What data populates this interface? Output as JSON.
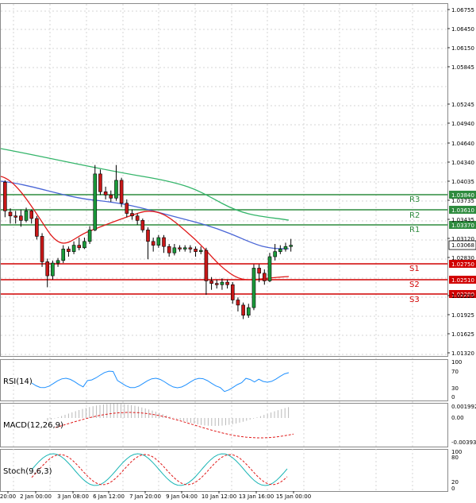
{
  "colors": {
    "level_green": "#2e8b3e",
    "level_red": "#d10000",
    "ma_red": "#e01818",
    "ma_blue": "#4a66d6",
    "ma_green": "#34b56a",
    "indicator": "#1e90ff",
    "macd_hist": "#b8b8b8",
    "signal": "#e01818",
    "candle_up": "#1a9a3a",
    "candle_down": "#c81818"
  },
  "main": {
    "y_labels": [
      "1.06755",
      "1.06450",
      "1.06150",
      "1.05845",
      "1.05245",
      "1.04940",
      "1.04640",
      "1.04340",
      "1.04035",
      "1.03735",
      "1.03435",
      "1.03120",
      "1.02830",
      "1.02225",
      "1.01925",
      "1.01625",
      "1.01320"
    ],
    "price_tag": "1.03068",
    "levels": [
      {
        "name": "R3",
        "value": "1.03840",
        "kind": "resistance"
      },
      {
        "name": "R2",
        "value": "1.03610",
        "kind": "resistance"
      },
      {
        "name": "R1",
        "value": "1.03370",
        "kind": "resistance"
      },
      {
        "name": "S1",
        "value": "1.02750",
        "kind": "support"
      },
      {
        "name": "S2",
        "value": "1.02510",
        "kind": "support"
      },
      {
        "name": "S3",
        "value": "1.02280",
        "kind": "support"
      }
    ]
  },
  "panels": {
    "rsi": {
      "title": "RSI(14)",
      "ticks": [
        "100",
        "70",
        "30",
        "0"
      ]
    },
    "macd": {
      "title": "MACD(12,26,9)",
      "ticks": [
        "0.001992",
        "0.00",
        "-0.003938"
      ]
    },
    "stoch": {
      "title": "Stoch(9,6,3)",
      "ticks": [
        "100",
        "80",
        "20",
        "0"
      ]
    }
  },
  "x_labels": [
    "20:00",
    "2 Jan 00:00",
    "3 Jan 08:00",
    "6 Jan 12:00",
    "7 Jan 20:00",
    "9 Jan 04:00",
    "10 Jan 12:00",
    "13 Jan 16:00",
    "15 Jan 00:00"
  ],
  "chart_data": {
    "type": "candlestick",
    "candles": [
      [
        1.0405,
        1.036,
        1.0408,
        1.035
      ],
      [
        1.0358,
        1.0352,
        1.0364,
        1.034
      ],
      [
        1.0352,
        1.035,
        1.036,
        1.034
      ],
      [
        1.0352,
        1.0345,
        1.0362,
        1.0335
      ],
      [
        1.0345,
        1.036,
        1.0365,
        1.0342
      ],
      [
        1.036,
        1.0348,
        1.0362,
        1.034
      ],
      [
        1.0348,
        1.032,
        1.0352,
        1.0315
      ],
      [
        1.032,
        1.028,
        1.0325,
        1.0272
      ],
      [
        1.028,
        1.0258,
        1.0285,
        1.024
      ],
      [
        1.0258,
        1.0278,
        1.0282,
        1.0252
      ],
      [
        1.0278,
        1.0282,
        1.0286,
        1.0272
      ],
      [
        1.0282,
        1.03,
        1.0306,
        1.0278
      ],
      [
        1.03,
        1.0296,
        1.0304,
        1.0288
      ],
      [
        1.0296,
        1.0306,
        1.0312,
        1.0292
      ],
      [
        1.0306,
        1.0302,
        1.0318,
        1.0298
      ],
      [
        1.0302,
        1.0312,
        1.0318,
        1.03
      ],
      [
        1.0312,
        1.033,
        1.0336,
        1.0308
      ],
      [
        1.033,
        1.0418,
        1.0432,
        1.0328
      ],
      [
        1.0418,
        1.039,
        1.0425,
        1.0385
      ],
      [
        1.039,
        1.0385,
        1.0398,
        1.0378
      ],
      [
        1.0385,
        1.038,
        1.0392,
        1.0374
      ],
      [
        1.038,
        1.0408,
        1.0432,
        1.0376
      ],
      [
        1.0408,
        1.0372,
        1.0412,
        1.0366
      ],
      [
        1.0372,
        1.0356,
        1.0378,
        1.035
      ],
      [
        1.0356,
        1.0352,
        1.0362,
        1.0346
      ],
      [
        1.0352,
        1.0345,
        1.0356,
        1.0338
      ],
      [
        1.0345,
        1.033,
        1.0348,
        1.0326
      ],
      [
        1.033,
        1.0312,
        1.0334,
        1.0284
      ],
      [
        1.0312,
        1.0306,
        1.0318,
        1.0296
      ],
      [
        1.0306,
        1.0318,
        1.0322,
        1.0302
      ],
      [
        1.0318,
        1.0304,
        1.0322,
        1.0294
      ],
      [
        1.0304,
        1.0294,
        1.0308,
        1.0288
      ],
      [
        1.0294,
        1.0302,
        1.0308,
        1.029
      ],
      [
        1.0302,
        1.03,
        1.0306,
        1.0296
      ],
      [
        1.03,
        1.0302,
        1.0306,
        1.0296
      ],
      [
        1.0302,
        1.03,
        1.0306,
        1.0294
      ],
      [
        1.03,
        1.0296,
        1.0304,
        1.0288
      ],
      [
        1.0296,
        1.0298,
        1.0304,
        1.0292
      ],
      [
        1.0298,
        1.025,
        1.0302,
        1.0228
      ],
      [
        1.025,
        1.0246,
        1.0256,
        1.0236
      ],
      [
        1.0246,
        1.0244,
        1.0252,
        1.0238
      ],
      [
        1.0244,
        1.0248,
        1.0254,
        1.0236
      ],
      [
        1.0248,
        1.0244,
        1.0252,
        1.0238
      ],
      [
        1.0244,
        1.022,
        1.0248,
        1.0214
      ],
      [
        1.022,
        1.0212,
        1.0224,
        1.0202
      ],
      [
        1.0212,
        1.0196,
        1.0216,
        1.019
      ],
      [
        1.0196,
        1.0208,
        1.0214,
        1.0192
      ],
      [
        1.0208,
        1.027,
        1.0276,
        1.0204
      ],
      [
        1.027,
        1.0262,
        1.0276,
        1.0248
      ],
      [
        1.0262,
        1.025,
        1.0268,
        1.0244
      ],
      [
        1.025,
        1.0288,
        1.0294,
        1.0248
      ],
      [
        1.0288,
        1.0296,
        1.0308,
        1.0282
      ],
      [
        1.0296,
        1.03,
        1.0306,
        1.0292
      ],
      [
        1.03,
        1.0304,
        1.031,
        1.0296
      ],
      [
        1.0304,
        1.0306,
        1.0316,
        1.0296
      ]
    ],
    "ylim": [
      1.0132,
      1.0685
    ]
  }
}
